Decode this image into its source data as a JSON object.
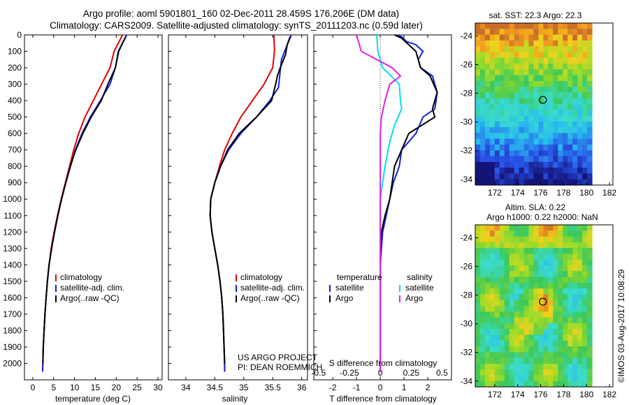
{
  "header": {
    "line1": "Argo profile: aoml 5901801_160 02-Dec-2011 28.459S 176.206E (DM data)",
    "line2": "Climatology: CARS2009. Satellite-adjusted climatology: synTS_20111203.nc (0.59d later)"
  },
  "colors": {
    "climatology": "#e00000",
    "satellite": "#1020e0",
    "argo": "#000000",
    "cyan": "#00e0e8",
    "magenta": "#e020e0"
  },
  "chart_data": [
    {
      "type": "line",
      "id": "temperature",
      "xlabel": "temperature (deg C)",
      "ylabel": "",
      "xlim": [
        -2,
        31
      ],
      "ylim": [
        2100,
        0
      ],
      "xticks": [
        0,
        5,
        10,
        15,
        20,
        25,
        30
      ],
      "yticks": [
        0,
        100,
        200,
        300,
        400,
        500,
        600,
        700,
        800,
        900,
        1000,
        1100,
        1200,
        1300,
        1400,
        1500,
        1600,
        1700,
        1800,
        1900,
        2000
      ],
      "legend": [
        "climatology",
        "satellite-adj. clim.",
        "Argo(..raw -QC)"
      ],
      "series": [
        {
          "name": "climatology",
          "color": "#e00000",
          "points": [
            [
              21.5,
              0
            ],
            [
              20.5,
              50
            ],
            [
              19.5,
              100
            ],
            [
              18.5,
              200
            ],
            [
              16.5,
              300
            ],
            [
              14.5,
              400
            ],
            [
              12.5,
              500
            ],
            [
              11,
              600
            ],
            [
              9.8,
              700
            ],
            [
              8.8,
              800
            ],
            [
              7.8,
              900
            ],
            [
              6.8,
              1000
            ],
            [
              5.9,
              1100
            ],
            [
              5.1,
              1200
            ],
            [
              4.4,
              1300
            ],
            [
              3.9,
              1400
            ],
            [
              3.5,
              1500
            ],
            [
              3.2,
              1600
            ],
            [
              2.9,
              1700
            ],
            [
              2.7,
              1800
            ],
            [
              2.5,
              1900
            ],
            [
              2.4,
              2000
            ],
            [
              2.35,
              2050
            ]
          ]
        },
        {
          "name": "satellite-adj. clim.",
          "color": "#1020e0",
          "points": [
            [
              22.5,
              0
            ],
            [
              21.5,
              50
            ],
            [
              20.5,
              100
            ],
            [
              19.8,
              200
            ],
            [
              18.5,
              300
            ],
            [
              16.2,
              400
            ],
            [
              13.8,
              500
            ],
            [
              11.8,
              600
            ],
            [
              10.2,
              700
            ],
            [
              9,
              800
            ],
            [
              7.9,
              900
            ],
            [
              6.9,
              1000
            ],
            [
              6,
              1100
            ],
            [
              5.2,
              1200
            ],
            [
              4.5,
              1300
            ],
            [
              3.9,
              1400
            ],
            [
              3.5,
              1500
            ],
            [
              3.2,
              1600
            ],
            [
              2.9,
              1700
            ],
            [
              2.7,
              1800
            ],
            [
              2.5,
              1900
            ],
            [
              2.4,
              2000
            ],
            [
              2.35,
              2050
            ]
          ]
        },
        {
          "name": "Argo(..raw -QC)",
          "color": "#000000",
          "points": [
            [
              22.3,
              10
            ],
            [
              21.5,
              50
            ],
            [
              20.6,
              100
            ],
            [
              19.8,
              200
            ],
            [
              18,
              300
            ],
            [
              16.4,
              400
            ],
            [
              14,
              500
            ],
            [
              12,
              600
            ],
            [
              10.3,
              700
            ],
            [
              9,
              800
            ],
            [
              7.9,
              900
            ],
            [
              6.9,
              1000
            ],
            [
              6,
              1100
            ],
            [
              5.2,
              1200
            ],
            [
              4.5,
              1300
            ],
            [
              3.9,
              1400
            ],
            [
              3.5,
              1500
            ],
            [
              3.2,
              1600
            ],
            [
              2.9,
              1700
            ],
            [
              2.7,
              1800
            ],
            [
              2.5,
              1900
            ],
            [
              2.4,
              2000
            ]
          ]
        }
      ]
    },
    {
      "type": "line",
      "id": "salinity",
      "xlabel": "salinity",
      "xlim": [
        33.7,
        36.1
      ],
      "ylim": [
        2100,
        0
      ],
      "xticks": [
        34,
        34.5,
        35,
        35.5,
        36
      ],
      "legend": [
        "climatology",
        "satellite-adj. clim.",
        "Argo(..raw -QC)"
      ],
      "series": [
        {
          "name": "climatology",
          "color": "#e00000",
          "points": [
            [
              35.52,
              0
            ],
            [
              35.53,
              100
            ],
            [
              35.5,
              200
            ],
            [
              35.35,
              300
            ],
            [
              35.15,
              400
            ],
            [
              34.95,
              500
            ],
            [
              34.8,
              600
            ],
            [
              34.67,
              700
            ],
            [
              34.58,
              800
            ],
            [
              34.5,
              900
            ],
            [
              34.43,
              1000
            ],
            [
              34.42,
              1100
            ],
            [
              34.45,
              1200
            ],
            [
              34.5,
              1300
            ],
            [
              34.55,
              1400
            ],
            [
              34.59,
              1500
            ],
            [
              34.62,
              1600
            ],
            [
              34.64,
              1700
            ],
            [
              34.65,
              1800
            ],
            [
              34.66,
              1900
            ],
            [
              34.67,
              2000
            ],
            [
              34.67,
              2050
            ]
          ]
        },
        {
          "name": "satellite-adj. clim.",
          "color": "#1020e0",
          "points": [
            [
              35.82,
              0
            ],
            [
              35.75,
              60
            ],
            [
              35.65,
              150
            ],
            [
              35.62,
              250
            ],
            [
              35.6,
              320
            ],
            [
              35.45,
              400
            ],
            [
              35.22,
              500
            ],
            [
              34.95,
              600
            ],
            [
              34.74,
              700
            ],
            [
              34.6,
              800
            ],
            [
              34.5,
              900
            ],
            [
              34.43,
              1000
            ],
            [
              34.42,
              1100
            ],
            [
              34.45,
              1200
            ],
            [
              34.5,
              1300
            ],
            [
              34.55,
              1400
            ],
            [
              34.59,
              1500
            ],
            [
              34.62,
              1600
            ],
            [
              34.64,
              1700
            ],
            [
              34.65,
              1800
            ],
            [
              34.66,
              1900
            ],
            [
              34.67,
              2000
            ],
            [
              34.67,
              2050
            ]
          ]
        },
        {
          "name": "Argo(..raw -QC)",
          "color": "#000000",
          "points": [
            [
              35.8,
              10
            ],
            [
              35.75,
              60
            ],
            [
              35.72,
              120
            ],
            [
              35.63,
              200
            ],
            [
              35.58,
              250
            ],
            [
              35.55,
              300
            ],
            [
              35.48,
              400
            ],
            [
              35.22,
              500
            ],
            [
              34.92,
              600
            ],
            [
              34.72,
              700
            ],
            [
              34.6,
              800
            ],
            [
              34.5,
              900
            ],
            [
              34.43,
              1000
            ],
            [
              34.42,
              1100
            ],
            [
              34.45,
              1200
            ],
            [
              34.5,
              1300
            ],
            [
              34.55,
              1400
            ],
            [
              34.59,
              1500
            ],
            [
              34.62,
              1600
            ],
            [
              34.64,
              1700
            ],
            [
              34.65,
              1800
            ],
            [
              34.66,
              1900
            ],
            [
              34.67,
              2000
            ]
          ]
        }
      ],
      "annotations": [
        "US ARGO PROJECT",
        "PI: DEAN ROEMMICH"
      ]
    },
    {
      "type": "line",
      "id": "difference",
      "xlabel": "T difference from climatology",
      "xlabel_top": "S difference from climatology",
      "xlim": [
        -2.8,
        3
      ],
      "ylim": [
        2100,
        0
      ],
      "xticks": [
        -2,
        -1,
        0,
        1,
        2
      ],
      "s_xticks": [
        -0.5,
        -0.25,
        0,
        0.25,
        0.5
      ],
      "legend_groups": [
        "temperature",
        "salinity"
      ],
      "legend": {
        "temperature": [
          "satellite",
          "Argo"
        ],
        "salinity": [
          "satellite",
          "Argo"
        ]
      },
      "series": [
        {
          "name": "T satellite",
          "color": "#1020e0",
          "points": [
            [
              0.6,
              0
            ],
            [
              0.9,
              10
            ],
            [
              1.1,
              40
            ],
            [
              1.5,
              60
            ],
            [
              1.8,
              100
            ],
            [
              1.6,
              150
            ],
            [
              1.7,
              200
            ],
            [
              2.2,
              250
            ],
            [
              2.3,
              300
            ],
            [
              2.4,
              350
            ],
            [
              2.3,
              450
            ],
            [
              1.8,
              500
            ],
            [
              1.5,
              600
            ],
            [
              0.9,
              700
            ],
            [
              0.8,
              800
            ],
            [
              0.55,
              900
            ],
            [
              0.4,
              1000
            ],
            [
              0.25,
              1100
            ],
            [
              0.1,
              1200
            ],
            [
              0.05,
              1300
            ],
            [
              0,
              1400
            ],
            [
              0,
              2050
            ]
          ]
        },
        {
          "name": "T Argo",
          "color": "#000000",
          "points": [
            [
              0.6,
              0
            ],
            [
              0.9,
              20
            ],
            [
              1.2,
              60
            ],
            [
              1.5,
              100
            ],
            [
              1.6,
              150
            ],
            [
              1.7,
              200
            ],
            [
              2.1,
              250
            ],
            [
              2.4,
              350
            ],
            [
              2.2,
              450
            ],
            [
              2.3,
              500
            ],
            [
              1.2,
              600
            ],
            [
              0.9,
              700
            ],
            [
              0.6,
              800
            ],
            [
              0.5,
              900
            ],
            [
              0.4,
              1000
            ],
            [
              0.2,
              1100
            ],
            [
              0.05,
              1200
            ],
            [
              0,
              1300
            ],
            [
              0,
              2050
            ]
          ]
        },
        {
          "name": "S satellite",
          "color": "#00e0e8",
          "points": [
            [
              -0.15,
              0
            ],
            [
              -0.1,
              100
            ],
            [
              0.1,
              200
            ],
            [
              0.8,
              300
            ],
            [
              0.85,
              400
            ],
            [
              0.9,
              450
            ],
            [
              0.6,
              550
            ],
            [
              0.4,
              650
            ],
            [
              0.2,
              800
            ],
            [
              0.1,
              900
            ],
            [
              0,
              1000
            ],
            [
              0,
              2050
            ]
          ]
        },
        {
          "name": "S Argo",
          "color": "#e020e0",
          "points": [
            [
              -1.0,
              0
            ],
            [
              -0.8,
              100
            ],
            [
              0.5,
              200
            ],
            [
              0.85,
              250
            ],
            [
              0.4,
              300
            ],
            [
              0.2,
              400
            ],
            [
              0.05,
              500
            ],
            [
              0,
              600
            ],
            [
              0,
              2050
            ]
          ]
        }
      ]
    }
  ],
  "maps": [
    {
      "id": "sst",
      "title": "sat. SST: 22.3 Argo: 22.3",
      "title2": "",
      "xticks": [
        172,
        174,
        176,
        178,
        180,
        182
      ],
      "yticks": [
        -24,
        -26,
        -28,
        -30,
        -32,
        -34
      ],
      "xlim": [
        170.3,
        182.3
      ],
      "ylim": [
        -34.4,
        -23.1
      ],
      "profile": [
        176.2,
        -28.46
      ]
    },
    {
      "id": "sla",
      "title": "Altim. SLA: 0.22",
      "title2": "Argo h1000: 0.22 h2000: NaN",
      "xticks": [
        172,
        174,
        176,
        178,
        180,
        182
      ],
      "yticks": [
        -24,
        -26,
        -28,
        -30,
        -32,
        -34
      ],
      "xlim": [
        170.3,
        182.3
      ],
      "ylim": [
        -34.4,
        -23.1
      ],
      "profile": [
        176.2,
        -28.46
      ]
    }
  ],
  "footer": {
    "imos": "©IMOS 03-Aug-2017 10:08:29"
  }
}
